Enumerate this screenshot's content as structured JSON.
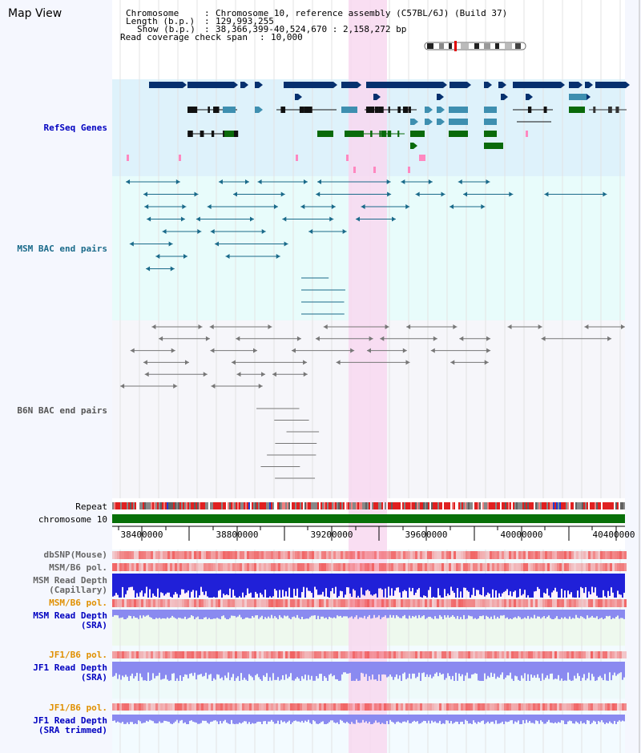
{
  "page": {
    "title": "Map View"
  },
  "header": {
    "chromosome_key": "Chromosome",
    "chromosome_val": "Chromosome 10, reference assembly (C57BL/6J) (Build 37)",
    "length_key": "Length (b.p.)",
    "length_val": "129,993,255",
    "show_key": "Show (b.p.)",
    "show_val": "38,366,399-40,524,670 : 2,158,272 bp",
    "span_key": "Read coverage check span",
    "span_val": "10,000"
  },
  "tracks": {
    "refseq": "RefSeq Genes",
    "msm_bac": "MSM BAC end pairs",
    "b6n_bac": "B6N BAC end pairs",
    "repeat": "Repeat",
    "chromosome": "chromosome 10",
    "dbsnp": "dbSNP(Mouse)",
    "msm_b6_pol_1": "MSM/B6 pol.",
    "msm_depth_cap_1": "MSM Read Depth",
    "msm_depth_cap_2": "(Capillary)",
    "msm_b6_pol_2": "MSM/B6 pol.",
    "msm_depth_sra_1": "MSM Read Depth",
    "msm_depth_sra_2": "(SRA)",
    "jf1_b6_pol_1": "JF1/B6 pol.",
    "jf1_depth_sra_1": "JF1 Read Depth",
    "jf1_depth_sra_2": "(SRA)",
    "jf1_b6_pol_2": "JF1/B6 pol.",
    "jf1_depth_trim_1": "JF1 Read Depth",
    "jf1_depth_trim_2": "(SRA trimmed)"
  },
  "axis": {
    "ticks": [
      "38400000",
      "38800000",
      "39200000",
      "39600000",
      "40000000",
      "40400000"
    ]
  },
  "colors": {
    "refseq_bg": "#def2fb",
    "bac_bg": "#e8fcfb",
    "highlight": "#f8d8f0",
    "gene_dark": "#06306e",
    "gene_mid": "#3e8fb0",
    "gene_green": "#0a6a0a",
    "msm_line": "#1a6a8a",
    "b6n_line": "#777777",
    "chromosome_bar": "#087008",
    "depth_blue": "#2020d8",
    "depth_light": "#8a8af0",
    "pol_red": "#f04848",
    "label_blue": "#0000c0",
    "label_orange": "#e09000"
  }
}
